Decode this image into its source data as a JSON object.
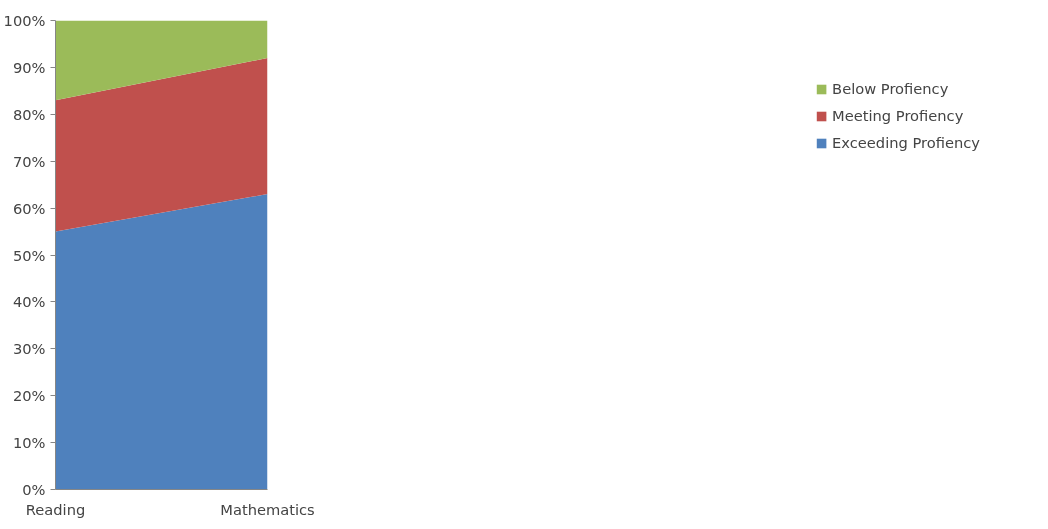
{
  "chart_data": {
    "type": "area",
    "stacked": true,
    "categories": [
      "Reading",
      "Mathematics"
    ],
    "series": [
      {
        "name": "Exceeding Profiency",
        "color": "#4f81bd",
        "values": [
          55,
          63
        ]
      },
      {
        "name": "Meeting Profiency",
        "color": "#c0504d",
        "values": [
          28,
          29
        ]
      },
      {
        "name": "Below Profiency",
        "color": "#9bbb59",
        "values": [
          17,
          8
        ]
      }
    ],
    "ylim": [
      0,
      100
    ],
    "yticks": [
      {
        "value": 0,
        "label": "0%"
      },
      {
        "value": 10,
        "label": "10%"
      },
      {
        "value": 20,
        "label": "20%"
      },
      {
        "value": 30,
        "label": "30%"
      },
      {
        "value": 40,
        "label": "40%"
      },
      {
        "value": 50,
        "label": "50%"
      },
      {
        "value": 60,
        "label": "60%"
      },
      {
        "value": 70,
        "label": "70%"
      },
      {
        "value": 80,
        "label": "80%"
      },
      {
        "value": 90,
        "label": "90%"
      },
      {
        "value": 100,
        "label": "100%"
      }
    ],
    "grid": false,
    "legend": "right"
  }
}
